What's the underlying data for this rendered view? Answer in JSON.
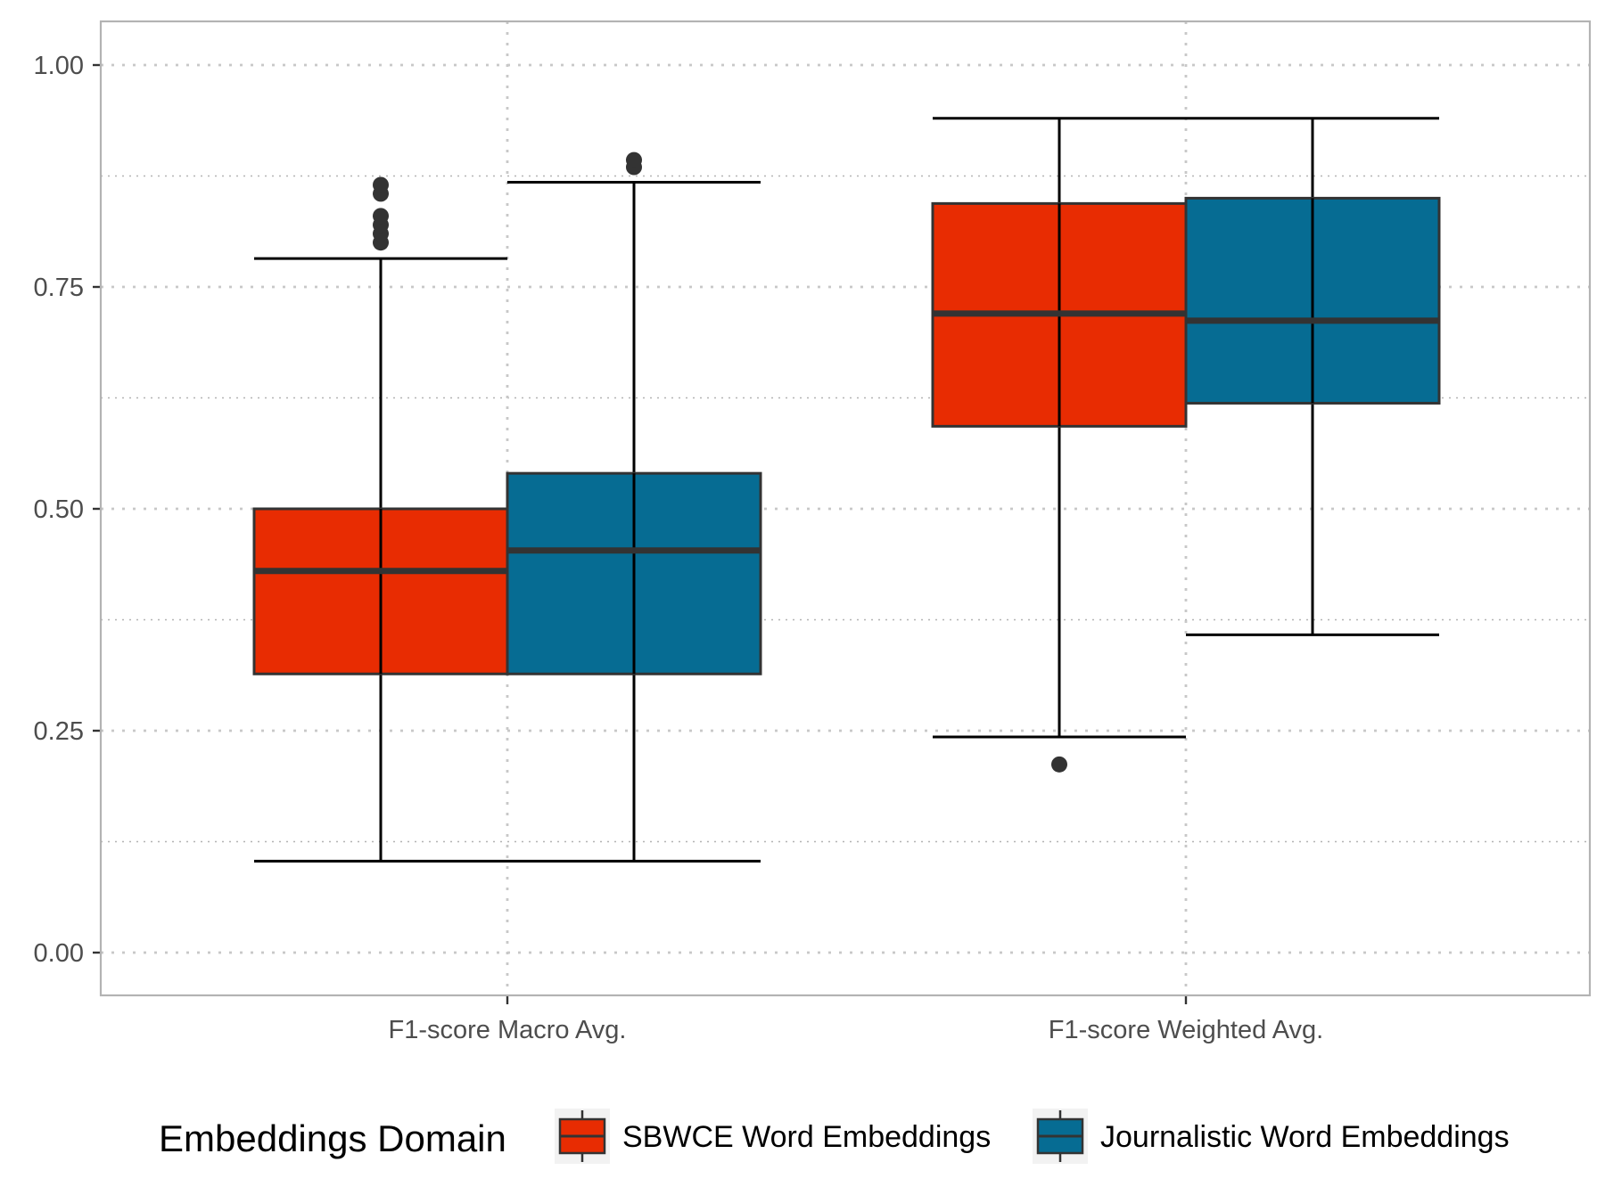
{
  "chart_data": {
    "type": "boxplot",
    "title": "",
    "xlabel": "",
    "ylabel": "",
    "ylim": [
      -0.05,
      1.04
    ],
    "y_ticks": [
      "0.00",
      "0.25",
      "0.50",
      "0.75",
      "1.00"
    ],
    "grid": "dotted major and minor",
    "legend_position": "bottom",
    "categories": [
      "F1-score Macro Avg.",
      "F1-score Weighted Avg."
    ],
    "legend": {
      "title": "Embeddings Domain"
    },
    "series": [
      {
        "name": "SBWCE Word Embeddings",
        "color": "#e82c02",
        "boxes": [
          {
            "whisker_low": 0.103,
            "q1": 0.314,
            "median": 0.43,
            "q3": 0.5,
            "whisker_high": 0.782,
            "outliers": [
              0.8,
              0.81,
              0.82,
              0.83,
              0.855,
              0.865
            ]
          },
          {
            "whisker_low": 0.243,
            "q1": 0.593,
            "median": 0.72,
            "q3": 0.844,
            "whisker_high": 0.94,
            "outliers": [
              0.212
            ]
          }
        ]
      },
      {
        "name": "Journalistic Word Embeddings",
        "color": "#066c93",
        "boxes": [
          {
            "whisker_low": 0.103,
            "q1": 0.314,
            "median": 0.453,
            "q3": 0.54,
            "whisker_high": 0.868,
            "outliers": [
              0.885,
              0.893
            ]
          },
          {
            "whisker_low": 0.358,
            "q1": 0.619,
            "median": 0.712,
            "q3": 0.85,
            "whisker_high": 0.94,
            "outliers": []
          }
        ]
      }
    ]
  }
}
